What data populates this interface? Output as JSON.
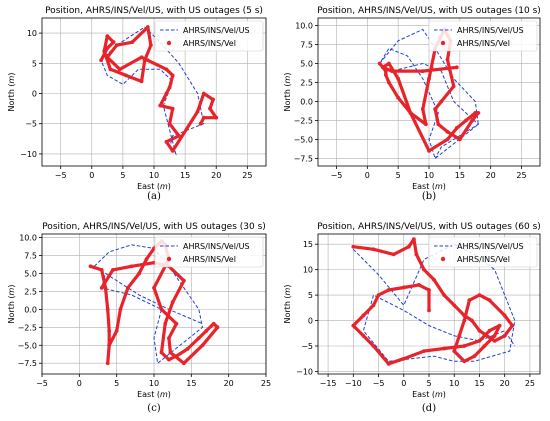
{
  "chart_data": [
    {
      "type": "line",
      "title": "Position, AHRS/INS/Vel/US, with US outages (5 s)",
      "xlabel": "East",
      "ylabel": "North",
      "axis_unit": "m",
      "caption": "(a)",
      "xlim": [
        -8,
        28
      ],
      "ylim": [
        -12,
        12.5
      ],
      "xticks": [
        "−5",
        "0",
        "5",
        "10",
        "15",
        "20",
        "25"
      ],
      "yticks": [
        "−10",
        "−5",
        "0",
        "5",
        "10"
      ],
      "xtick_values": [
        -5,
        0,
        5,
        10,
        15,
        20,
        25
      ],
      "ytick_values": [
        -10,
        -5,
        0,
        5,
        10
      ],
      "grid": true,
      "legend_position": "top-right",
      "series": [
        {
          "name": "AHRS/INS/Vel/US",
          "style": "dashed",
          "color": "#1f3fd6",
          "x": [
            1.5,
            4,
            8.5,
            11,
            14,
            17,
            18,
            13,
            12.5,
            13.5,
            11.5,
            13,
            11,
            7.5,
            5,
            2.5,
            1.5
          ],
          "y": [
            5.5,
            8,
            11,
            8.5,
            5,
            0,
            -5,
            -7,
            -9,
            -10,
            -2,
            2,
            4,
            4,
            1.5,
            3,
            5.5
          ]
        },
        {
          "name": "AHRS/INS/Vel",
          "style": "markers",
          "color": "#e8242a",
          "x": [
            1.5,
            2.5,
            3.5,
            2.5,
            2,
            3,
            5.5,
            8,
            8.5,
            9.5,
            9,
            6.5,
            4,
            2.5,
            4.5,
            8,
            9,
            12,
            13,
            12.5,
            12,
            11,
            13,
            12.5,
            14,
            12,
            13,
            17,
            18,
            19.5,
            19,
            20,
            18,
            17.5
          ],
          "y": [
            5.5,
            7.5,
            8.5,
            9.5,
            7,
            4,
            3,
            2,
            5.5,
            8,
            11,
            8.5,
            8,
            6,
            4,
            6,
            5.5,
            4,
            3,
            1,
            0,
            -2,
            -2.5,
            -5,
            -7,
            -8,
            -9.5,
            -3,
            0,
            -1,
            -2.5,
            -4,
            -4,
            -5
          ]
        }
      ]
    },
    {
      "type": "line",
      "title": "Position, AHRS/INS/Vel/US, with US outages (10 s)",
      "xlabel": "East",
      "ylabel": "North",
      "axis_unit": "m",
      "caption": "(b)",
      "xlim": [
        -8,
        28
      ],
      "ylim": [
        -8.5,
        11
      ],
      "xticks": [
        "−5",
        "0",
        "5",
        "10",
        "15",
        "20",
        "25"
      ],
      "yticks": [
        "−7.5",
        "−5.0",
        "−2.5",
        "0.0",
        "2.5",
        "5.0",
        "7.5",
        "10.0"
      ],
      "xtick_values": [
        -5,
        0,
        5,
        10,
        15,
        20,
        25
      ],
      "ytick_values": [
        -7.5,
        -5,
        -2.5,
        0,
        2.5,
        5,
        7.5,
        10
      ],
      "grid": true,
      "legend_position": "top-right",
      "series": [
        {
          "name": "AHRS/INS/Vel/US",
          "style": "dashed",
          "color": "#1f3fd6",
          "x": [
            2,
            5,
            9,
            11,
            14,
            17.5,
            18,
            11,
            10,
            11.5,
            9,
            6.5,
            3.5,
            2,
            4,
            9,
            12,
            14,
            18,
            12,
            11
          ],
          "y": [
            5,
            8,
            9.5,
            7,
            3,
            0,
            -3,
            -7.5,
            -5,
            -1.5,
            3,
            6,
            7,
            5,
            4,
            5,
            4,
            0,
            -3,
            -6,
            -7.5
          ]
        },
        {
          "name": "AHRS/INS/Vel",
          "style": "markers",
          "color": "#e8242a",
          "x": [
            2,
            3,
            3,
            3.5,
            5,
            7,
            9.5,
            9,
            10,
            11,
            12.5,
            13.5,
            13,
            14,
            12,
            11,
            11.5,
            13,
            15,
            17,
            18,
            17.5,
            16,
            14.5,
            13,
            10,
            7,
            5,
            3.5,
            2.5,
            4,
            9,
            14.5
          ],
          "y": [
            5,
            4,
            3.5,
            2.5,
            0.5,
            -1.5,
            -3,
            -1,
            3,
            7,
            9.5,
            8,
            5.5,
            2,
            0,
            -1,
            -3,
            -4,
            -5,
            -2.5,
            -1.5,
            -1.5,
            -2.5,
            -3.5,
            -5,
            -6.5,
            -1.5,
            3,
            5,
            4.5,
            4,
            4,
            4.5
          ]
        }
      ]
    },
    {
      "type": "line",
      "title": "Position, AHRS/INS/Vel/US, with US outages (30 s)",
      "xlabel": "East",
      "ylabel": "North",
      "axis_unit": "m",
      "caption": "(c)",
      "xlim": [
        -5,
        25
      ],
      "ylim": [
        -9,
        10.5
      ],
      "xticks": [
        "−5",
        "0",
        "5",
        "10",
        "15",
        "20",
        "25"
      ],
      "yticks": [
        "−7.5",
        "−5.0",
        "−2.5",
        "0.0",
        "2.5",
        "5.0",
        "7.5",
        "10.0"
      ],
      "xtick_values": [
        -5,
        0,
        5,
        10,
        15,
        20,
        25
      ],
      "ytick_values": [
        -7.5,
        -5,
        -2.5,
        0,
        2.5,
        5,
        7.5,
        10
      ],
      "grid": true,
      "legend_position": "top-right",
      "series": [
        {
          "name": "AHRS/INS/Vel/US",
          "style": "dashed",
          "color": "#1f3fd6",
          "x": [
            2,
            4,
            7,
            10,
            12,
            14,
            16,
            16.5,
            10.5,
            10,
            11,
            7,
            3,
            3.5,
            8,
            12,
            16.5
          ],
          "y": [
            6,
            8,
            9,
            8.5,
            6,
            3,
            0,
            -2.5,
            -7.5,
            -4,
            0,
            2,
            3,
            5,
            2,
            0,
            -2
          ]
        },
        {
          "name": "AHRS/INS/Vel",
          "style": "markers",
          "color": "#e8242a",
          "x": [
            1.5,
            3,
            3.5,
            3.8,
            4,
            4,
            3.8,
            4,
            5,
            5.5,
            6.5,
            8,
            9,
            10,
            11,
            11.5,
            12,
            10,
            11,
            13,
            12,
            12.2,
            14,
            16.5,
            18.5,
            18,
            17,
            16,
            14.5,
            13,
            12,
            11,
            11.5,
            12.5,
            14,
            12,
            10,
            7,
            4.5,
            3
          ],
          "y": [
            6,
            5.5,
            3,
            0,
            -3,
            -5,
            -7.5,
            -5,
            -3,
            0,
            3,
            5,
            7,
            8.5,
            9.5,
            9,
            7,
            3,
            0,
            -2,
            -4,
            -6,
            -7.5,
            -5,
            -2.5,
            -2,
            -3,
            -4,
            -5.5,
            -6.5,
            -7,
            -6,
            -2,
            1,
            4,
            6,
            6.5,
            6,
            5.5,
            3
          ]
        }
      ]
    },
    {
      "type": "line",
      "title": "Position, AHRS/INS/Vel/US, with US outages (60 s)",
      "xlabel": "East",
      "ylabel": "North",
      "axis_unit": "m",
      "caption": "(d)",
      "xlim": [
        -17,
        27
      ],
      "ylim": [
        -10.5,
        17
      ],
      "xticks": [
        "−15",
        "−10",
        "−5",
        "0",
        "5",
        "10",
        "15",
        "20",
        "25"
      ],
      "yticks": [
        "−10",
        "−5",
        "0",
        "5",
        "10",
        "15"
      ],
      "xtick_values": [
        -15,
        -10,
        -5,
        0,
        5,
        10,
        15,
        20,
        25
      ],
      "ytick_values": [
        -10,
        -5,
        0,
        5,
        10,
        15
      ],
      "grid": true,
      "legend_position": "top-right",
      "series": [
        {
          "name": "AHRS/INS/Vel/US",
          "style": "dashed",
          "color": "#1f3fd6",
          "x": [
            -10,
            -5,
            0,
            4,
            10,
            14,
            18,
            20,
            22,
            21,
            14,
            10,
            6,
            -3,
            -8,
            -6,
            0,
            5,
            10,
            15,
            20,
            22
          ],
          "y": [
            14,
            9,
            3,
            12,
            15,
            13,
            10,
            5,
            0,
            -6,
            -8,
            -8,
            -7,
            -8,
            -2,
            5,
            2,
            -1,
            -3,
            -4,
            -2,
            -5
          ]
        },
        {
          "name": "AHRS/INS/Vel",
          "style": "markers",
          "color": "#e8242a",
          "x": [
            -10,
            -6,
            -2,
            1,
            2,
            2.5,
            4,
            6,
            8,
            10,
            12,
            13.5,
            15,
            18,
            20,
            21.5,
            20,
            17,
            15,
            13,
            12,
            11,
            10,
            12,
            14,
            16,
            18,
            19,
            17,
            15,
            12,
            8,
            4,
            0,
            -3,
            -6,
            -8,
            -10,
            -8,
            -6,
            -5,
            -3,
            0,
            3,
            5,
            5
          ],
          "y": [
            14.5,
            14,
            13,
            14.5,
            16,
            13,
            10,
            8,
            5,
            3,
            1,
            0,
            -2,
            -4,
            -3,
            -1,
            1,
            4,
            5,
            4,
            0,
            -3,
            -6,
            -8,
            -7,
            -5,
            -3,
            -1,
            -2,
            -4,
            -5,
            -5.5,
            -6,
            -7.5,
            -8.5,
            -5,
            -3,
            -1,
            1,
            3,
            5,
            6,
            6.5,
            7,
            6,
            2
          ]
        }
      ]
    }
  ]
}
